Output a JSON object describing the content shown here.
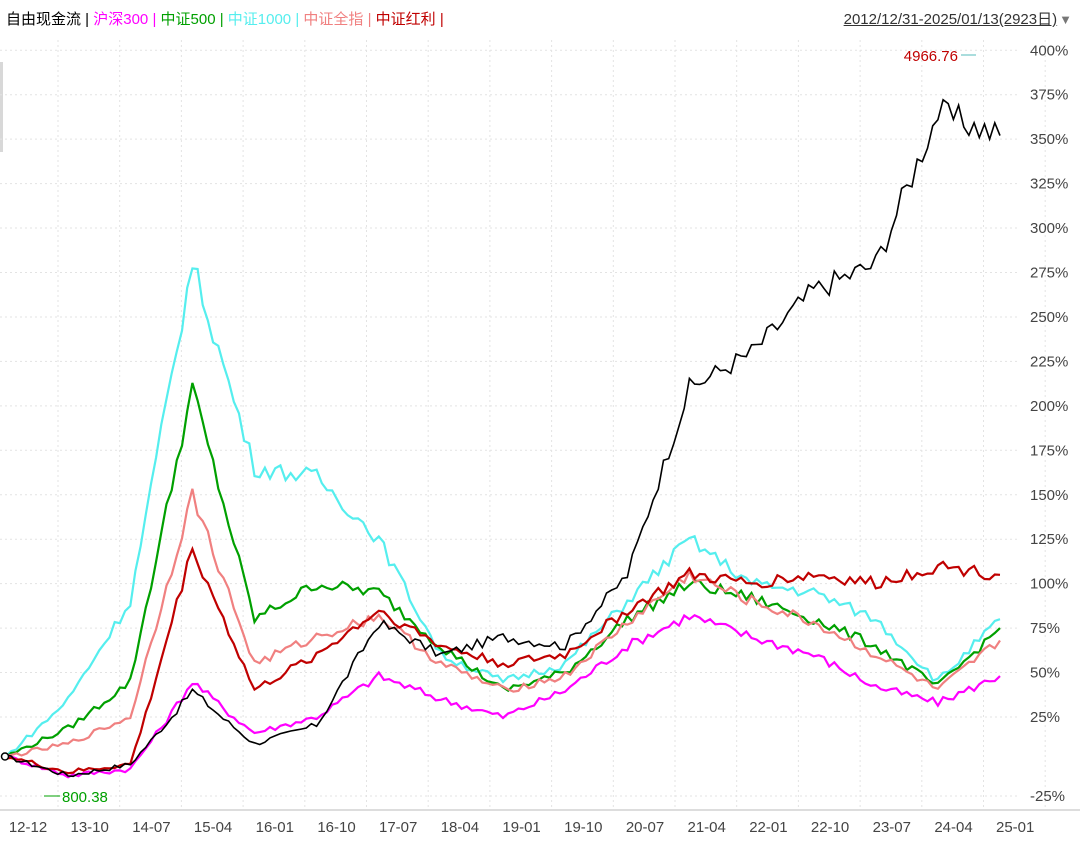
{
  "legend": {
    "items": [
      {
        "label": "自由现金流",
        "color": "#000000"
      },
      {
        "label": "沪深300",
        "color": "#ff00ff"
      },
      {
        "label": "中证500",
        "color": "#00a000"
      },
      {
        "label": "中证1000",
        "color": "#55eeee"
      },
      {
        "label": "中证全指",
        "color": "#f08080"
      },
      {
        "label": "中证红利",
        "color": "#c00000"
      }
    ],
    "separator": " | "
  },
  "range": {
    "text": "2012/12/31-2025/01/13(2923日)",
    "arrow": "▼"
  },
  "annotations": {
    "max_label": "4966.76",
    "min_label": "800.38"
  },
  "chart_data": {
    "type": "line",
    "title": "",
    "xlabel": "",
    "ylabel": "",
    "y_scale": "log",
    "ylim": [
      -27,
      405
    ],
    "grid": true,
    "legend_position": "top-left",
    "y_ticks": [
      {
        "value": 400,
        "label": "400%"
      },
      {
        "value": 375,
        "label": "375%"
      },
      {
        "value": 350,
        "label": "350%"
      },
      {
        "value": 325,
        "label": "325%"
      },
      {
        "value": 300,
        "label": "300%"
      },
      {
        "value": 275,
        "label": "275%"
      },
      {
        "value": 250,
        "label": "250%"
      },
      {
        "value": 225,
        "label": "225%"
      },
      {
        "value": 200,
        "label": "200%"
      },
      {
        "value": 175,
        "label": "175%"
      },
      {
        "value": 150,
        "label": "150%"
      },
      {
        "value": 125,
        "label": "125%"
      },
      {
        "value": 100,
        "label": "100%"
      },
      {
        "value": 75,
        "label": "75%"
      },
      {
        "value": 50,
        "label": "50%"
      },
      {
        "value": 25,
        "label": "25%"
      },
      {
        "value": -25,
        "label": "-25%"
      }
    ],
    "categories": [
      "12-12",
      "13-10",
      "14-07",
      "15-04",
      "16-01",
      "16-10",
      "17-07",
      "18-04",
      "19-01",
      "19-10",
      "20-07",
      "21-04",
      "22-01",
      "22-10",
      "23-07",
      "24-04",
      "25-01"
    ],
    "series": [
      {
        "name": "自由现金流",
        "color": "#000000",
        "values": [
          0,
          -12,
          -5,
          40,
          8,
          20,
          78,
          60,
          70,
          65,
          105,
          210,
          230,
          265,
          280,
          365,
          352
        ]
      },
      {
        "name": "沪深300",
        "color": "#ff00ff",
        "values": [
          0,
          -12,
          -8,
          45,
          15,
          25,
          48,
          35,
          25,
          40,
          65,
          82,
          70,
          60,
          42,
          33,
          48
        ]
      },
      {
        "name": "中证500",
        "color": "#00a000",
        "values": [
          0,
          18,
          45,
          210,
          80,
          100,
          95,
          65,
          40,
          50,
          80,
          100,
          92,
          80,
          65,
          42,
          75
        ]
      },
      {
        "name": "中证1000",
        "color": "#55eeee",
        "values": [
          0,
          35,
          90,
          280,
          165,
          160,
          125,
          60,
          45,
          55,
          90,
          125,
          100,
          95,
          80,
          45,
          80
        ]
      },
      {
        "name": "中证全指",
        "color": "#f08080",
        "values": [
          0,
          8,
          25,
          150,
          55,
          70,
          82,
          55,
          40,
          48,
          78,
          105,
          90,
          78,
          60,
          40,
          68
        ]
      },
      {
        "name": "中证红利",
        "color": "#c00000",
        "values": [
          0,
          -10,
          -5,
          120,
          40,
          60,
          85,
          65,
          55,
          60,
          85,
          105,
          100,
          105,
          100,
          110,
          105
        ]
      }
    ]
  }
}
